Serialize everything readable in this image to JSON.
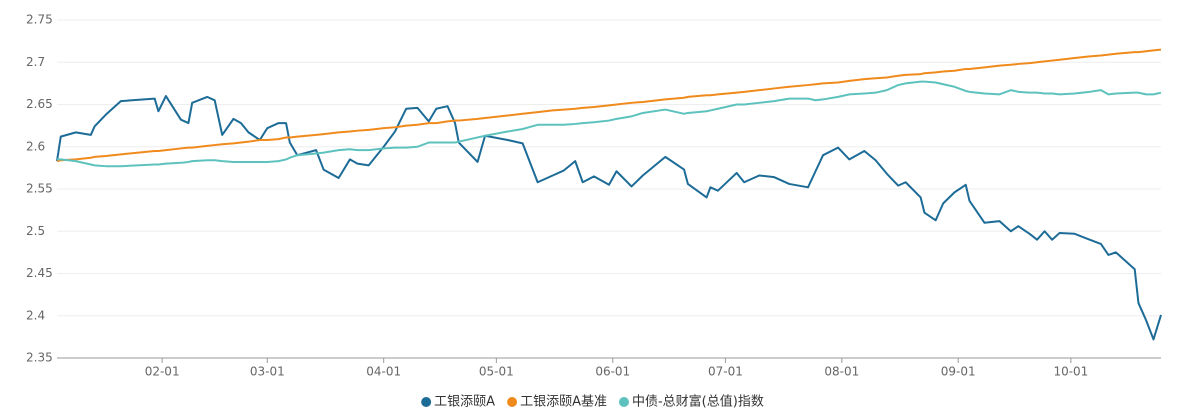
{
  "chart_data": {
    "type": "line",
    "x": [
      "01-04",
      "01-05",
      "01-09",
      "01-13",
      "01-14",
      "01-17",
      "01-21",
      "01-30",
      "01-31",
      "02-02",
      "02-06",
      "02-08",
      "02-09",
      "02-13",
      "02-15",
      "02-17",
      "02-20",
      "02-22",
      "02-24",
      "02-27",
      "03-01",
      "03-04",
      "03-06",
      "03-07",
      "03-09",
      "03-14",
      "03-16",
      "03-20",
      "03-23",
      "03-25",
      "03-28",
      "04-01",
      "04-04",
      "04-07",
      "04-10",
      "04-13",
      "04-15",
      "04-18",
      "04-20",
      "04-21",
      "04-26",
      "04-28",
      "05-04",
      "05-08",
      "05-12",
      "05-16",
      "05-19",
      "05-22",
      "05-24",
      "05-27",
      "05-31",
      "06-02",
      "06-06",
      "06-09",
      "06-15",
      "06-20",
      "06-21",
      "06-26",
      "06-27",
      "06-29",
      "07-04",
      "07-06",
      "07-10",
      "07-14",
      "07-18",
      "07-23",
      "07-25",
      "07-27",
      "07-31",
      "08-03",
      "08-07",
      "08-10",
      "08-13",
      "08-16",
      "08-18",
      "08-22",
      "08-23",
      "08-26",
      "08-28",
      "08-31",
      "09-03",
      "09-04",
      "09-08",
      "09-12",
      "09-15",
      "09-17",
      "09-20",
      "09-22",
      "09-24",
      "09-26",
      "09-28",
      "10-02",
      "10-06",
      "10-09",
      "10-11",
      "10-13",
      "10-18",
      "10-19",
      "10-21",
      "10-23",
      "10-25"
    ],
    "series": [
      {
        "name": "工银添颐A",
        "color": "#1d6c97",
        "values": [
          2.583,
          2.612,
          2.617,
          2.614,
          2.624,
          2.638,
          2.654,
          2.657,
          2.642,
          2.66,
          2.632,
          2.628,
          2.652,
          2.659,
          2.655,
          2.614,
          2.633,
          2.628,
          2.617,
          2.608,
          2.622,
          2.628,
          2.628,
          2.605,
          2.59,
          2.596,
          2.573,
          2.563,
          2.585,
          2.58,
          2.578,
          2.6,
          2.618,
          2.645,
          2.646,
          2.63,
          2.645,
          2.648,
          2.628,
          2.605,
          2.582,
          2.613,
          2.608,
          2.604,
          2.558,
          2.566,
          2.572,
          2.583,
          2.558,
          2.565,
          2.555,
          2.571,
          2.553,
          2.566,
          2.588,
          2.573,
          2.556,
          2.54,
          2.552,
          2.548,
          2.569,
          2.558,
          2.566,
          2.564,
          2.556,
          2.552,
          2.571,
          2.59,
          2.599,
          2.585,
          2.595,
          2.584,
          2.568,
          2.554,
          2.558,
          2.54,
          2.522,
          2.513,
          2.533,
          2.546,
          2.555,
          2.536,
          2.51,
          2.512,
          2.5,
          2.506,
          2.497,
          2.49,
          2.5,
          2.49,
          2.498,
          2.497,
          2.49,
          2.485,
          2.472,
          2.475,
          2.455,
          2.415,
          2.395,
          2.372,
          2.401
        ]
      },
      {
        "name": "工银添颐A基准",
        "color": "#f08a1d",
        "values": [
          2.583,
          2.584,
          2.585,
          2.587,
          2.588,
          2.589,
          2.591,
          2.595,
          2.595,
          2.596,
          2.598,
          2.599,
          2.599,
          2.601,
          2.602,
          2.603,
          2.604,
          2.605,
          2.606,
          2.608,
          2.608,
          2.609,
          2.611,
          2.611,
          2.612,
          2.614,
          2.615,
          2.617,
          2.618,
          2.619,
          2.62,
          2.622,
          2.623,
          2.625,
          2.626,
          2.628,
          2.628,
          2.63,
          2.631,
          2.631,
          2.633,
          2.634,
          2.637,
          2.639,
          2.641,
          2.643,
          2.644,
          2.645,
          2.646,
          2.647,
          2.649,
          2.65,
          2.652,
          2.653,
          2.656,
          2.658,
          2.659,
          2.661,
          2.661,
          2.662,
          2.664,
          2.665,
          2.667,
          2.669,
          2.671,
          2.673,
          2.674,
          2.675,
          2.676,
          2.678,
          2.68,
          2.681,
          2.682,
          2.684,
          2.685,
          2.686,
          2.687,
          2.688,
          2.689,
          2.69,
          2.692,
          2.692,
          2.694,
          2.696,
          2.697,
          2.698,
          2.699,
          2.7,
          2.701,
          2.702,
          2.703,
          2.705,
          2.707,
          2.708,
          2.709,
          2.71,
          2.712,
          2.712,
          2.713,
          2.714,
          2.715
        ]
      },
      {
        "name": "中债-总财富(总值)指数",
        "color": "#5dc2bd",
        "values": [
          2.585,
          2.585,
          2.583,
          2.579,
          2.578,
          2.577,
          2.577,
          2.579,
          2.579,
          2.58,
          2.581,
          2.582,
          2.583,
          2.584,
          2.584,
          2.583,
          2.582,
          2.582,
          2.582,
          2.582,
          2.582,
          2.583,
          2.585,
          2.587,
          2.59,
          2.592,
          2.593,
          2.596,
          2.597,
          2.596,
          2.596,
          2.598,
          2.599,
          2.599,
          2.6,
          2.605,
          2.605,
          2.605,
          2.605,
          2.606,
          2.611,
          2.613,
          2.618,
          2.621,
          2.626,
          2.626,
          2.626,
          2.627,
          2.628,
          2.629,
          2.631,
          2.633,
          2.636,
          2.64,
          2.644,
          2.639,
          2.64,
          2.642,
          2.643,
          2.645,
          2.65,
          2.65,
          2.652,
          2.654,
          2.657,
          2.657,
          2.655,
          2.656,
          2.659,
          2.662,
          2.663,
          2.664,
          2.667,
          2.673,
          2.675,
          2.677,
          2.677,
          2.676,
          2.674,
          2.671,
          2.666,
          2.665,
          2.663,
          2.662,
          2.667,
          2.665,
          2.664,
          2.664,
          2.663,
          2.663,
          2.662,
          2.663,
          2.665,
          2.667,
          2.662,
          2.663,
          2.664,
          2.664,
          2.662,
          2.662,
          2.664
        ]
      }
    ],
    "xlim": [
      "01-04",
      "10-25"
    ],
    "xticks": [
      "02-01",
      "03-01",
      "04-01",
      "05-01",
      "06-01",
      "07-01",
      "08-01",
      "09-01",
      "10-01"
    ],
    "ylim": [
      2.35,
      2.75
    ],
    "yticks": [
      2.35,
      2.4,
      2.45,
      2.5,
      2.55,
      2.6,
      2.65,
      2.7,
      2.75
    ],
    "grid": true,
    "legend": "bottom"
  }
}
